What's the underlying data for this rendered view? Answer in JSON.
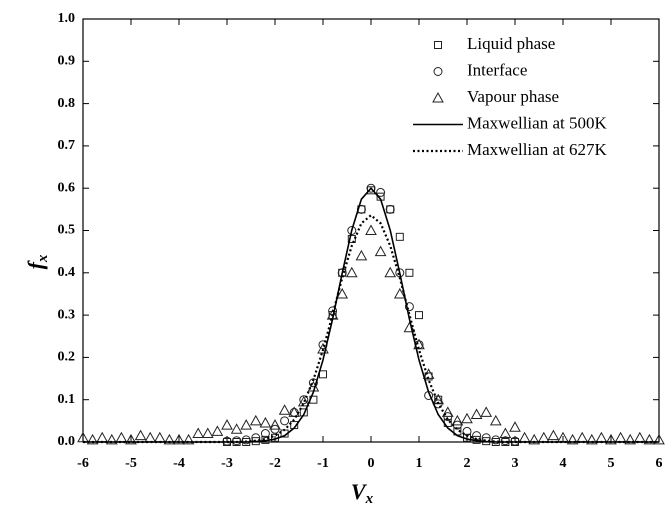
{
  "chart_data": {
    "type": "scatter",
    "x_label": {
      "text": "V",
      "subscript": "x"
    },
    "y_label": {
      "text": "f",
      "subscript": "x"
    },
    "xlim": [
      -6,
      6
    ],
    "xticks": [
      -6,
      -5,
      -4,
      -3,
      -2,
      -1,
      0,
      1,
      2,
      3,
      4,
      5,
      6
    ],
    "ylim": [
      0,
      1
    ],
    "yticks": [
      {
        "value": 0,
        "label": "0.0"
      },
      0.1,
      0.2,
      0.3,
      0.4,
      0.5,
      0.6,
      0.7,
      0.8,
      0.9,
      {
        "value": 1,
        "label": "1.0"
      }
    ],
    "legend": "upper-right",
    "series": [
      {
        "name": "Liquid phase",
        "marker": "square",
        "color": "#222222",
        "x": [
          -3,
          -2.8,
          -2.6,
          -2.4,
          -2.2,
          -2,
          -1.8,
          -1.6,
          -1.4,
          -1.2,
          -1,
          -0.8,
          -0.6,
          -0.4,
          -0.2,
          0,
          0.2,
          0.4,
          0.6,
          0.8,
          1,
          1.2,
          1.4,
          1.6,
          1.8,
          2,
          2.2,
          2.4,
          2.6,
          2.8,
          3
        ],
        "values": [
          0,
          0,
          0,
          0.002,
          0.005,
          0.01,
          0.02,
          0.04,
          0.07,
          0.1,
          0.16,
          0.3,
          0.4,
          0.48,
          0.55,
          0.595,
          0.58,
          0.55,
          0.485,
          0.4,
          0.3,
          0.155,
          0.1,
          0.045,
          0.025,
          0.01,
          0.005,
          0.002,
          0,
          0,
          0
        ]
      },
      {
        "name": "Interface",
        "marker": "circle",
        "color": "#222222",
        "x": [
          -3,
          -2.8,
          -2.6,
          -2.4,
          -2.2,
          -2,
          -1.8,
          -1.6,
          -1.4,
          -1.2,
          -1,
          -0.8,
          -0.6,
          -0.4,
          -0.2,
          0,
          0.2,
          0.4,
          0.6,
          0.8,
          1,
          1.2,
          1.4,
          1.6,
          1.8,
          2,
          2.2,
          2.4,
          2.6,
          2.8,
          3
        ],
        "values": [
          0.002,
          0.003,
          0.005,
          0.01,
          0.02,
          0.03,
          0.05,
          0.07,
          0.1,
          0.14,
          0.23,
          0.31,
          0.4,
          0.5,
          0.55,
          0.6,
          0.59,
          0.55,
          0.4,
          0.32,
          0.23,
          0.11,
          0.09,
          0.06,
          0.04,
          0.025,
          0.015,
          0.01,
          0.005,
          0.003,
          0.002
        ]
      },
      {
        "name": "Vapour phase",
        "marker": "triangle",
        "color": "#222222",
        "x": [
          -6,
          -5.8,
          -5.6,
          -5.4,
          -5.2,
          -5,
          -4.8,
          -4.6,
          -4.4,
          -4.2,
          -4,
          -3.8,
          -3.6,
          -3.4,
          -3.2,
          -3,
          -2.8,
          -2.6,
          -2.4,
          -2.2,
          -2,
          -1.8,
          -1.6,
          -1.4,
          -1.2,
          -1,
          -0.8,
          -0.6,
          -0.4,
          -0.2,
          0,
          0.2,
          0.4,
          0.6,
          0.8,
          1,
          1.2,
          1.4,
          1.6,
          1.8,
          2,
          2.2,
          2.4,
          2.6,
          2.8,
          3,
          3.2,
          3.4,
          3.6,
          3.8,
          4,
          4.2,
          4.4,
          4.6,
          4.8,
          5,
          5.2,
          5.4,
          5.6,
          5.8,
          6
        ],
        "values": [
          0.01,
          0.005,
          0.01,
          0.005,
          0.01,
          0.005,
          0.015,
          0.01,
          0.01,
          0.005,
          0.005,
          0.005,
          0.02,
          0.02,
          0.025,
          0.04,
          0.03,
          0.04,
          0.05,
          0.045,
          0.04,
          0.075,
          0.07,
          0.095,
          0.13,
          0.22,
          0.3,
          0.35,
          0.4,
          0.44,
          0.5,
          0.45,
          0.4,
          0.35,
          0.27,
          0.23,
          0.16,
          0.1,
          0.07,
          0.05,
          0.055,
          0.065,
          0.07,
          0.05,
          0.02,
          0.035,
          0.01,
          0.005,
          0.01,
          0.015,
          0.01,
          0.005,
          0.01,
          0.005,
          0.01,
          0.005,
          0.01,
          0.005,
          0.01,
          0.005,
          0.005
        ]
      },
      {
        "name": "Maxwellian at 500K",
        "line": "solid",
        "color": "#000000",
        "x": [
          -6,
          -3,
          -2.8,
          -2.6,
          -2.4,
          -2.2,
          -2,
          -1.8,
          -1.6,
          -1.4,
          -1.2,
          -1,
          -0.8,
          -0.6,
          -0.4,
          -0.2,
          0,
          0.2,
          0.4,
          0.6,
          0.8,
          1,
          1.2,
          1.4,
          1.6,
          1.8,
          2,
          2.2,
          2.4,
          2.6,
          2.8,
          3,
          6
        ],
        "values": [
          0,
          0,
          0,
          0,
          0.001,
          0.003,
          0.007,
          0.015,
          0.033,
          0.065,
          0.118,
          0.194,
          0.291,
          0.399,
          0.501,
          0.574,
          0.6,
          0.574,
          0.501,
          0.399,
          0.291,
          0.194,
          0.118,
          0.065,
          0.033,
          0.015,
          0.007,
          0.003,
          0.001,
          0,
          0,
          0,
          0
        ]
      },
      {
        "name": "Maxwellian at 627K",
        "line": "dotted",
        "color": "#000000",
        "x": [
          -6,
          -3,
          -2.8,
          -2.6,
          -2.4,
          -2.2,
          -2,
          -1.8,
          -1.6,
          -1.4,
          -1.2,
          -1,
          -0.8,
          -0.6,
          -0.4,
          -0.2,
          0,
          0.2,
          0.4,
          0.6,
          0.8,
          1,
          1.2,
          1.4,
          1.6,
          1.8,
          2,
          2.2,
          2.4,
          2.6,
          2.8,
          3,
          6
        ],
        "values": [
          0,
          0,
          0,
          0.001,
          0.003,
          0.007,
          0.015,
          0.029,
          0.053,
          0.092,
          0.147,
          0.218,
          0.301,
          0.388,
          0.464,
          0.517,
          0.536,
          0.517,
          0.464,
          0.388,
          0.301,
          0.218,
          0.147,
          0.092,
          0.053,
          0.029,
          0.015,
          0.007,
          0.003,
          0.001,
          0,
          0,
          0
        ]
      }
    ]
  }
}
